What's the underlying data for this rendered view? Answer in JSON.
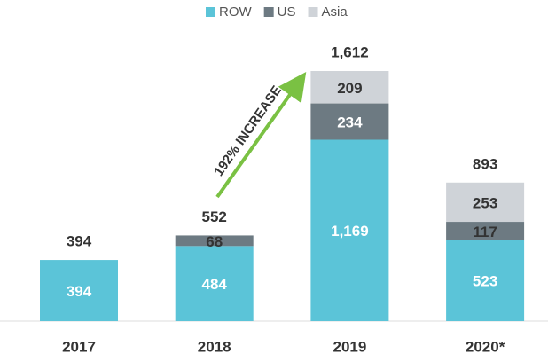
{
  "chart_data": {
    "type": "stacked-bar",
    "categories": [
      "2017",
      "2018",
      "2019",
      "2020*"
    ],
    "series": [
      {
        "name": "ROW",
        "color": "#5bc4d8",
        "values": [
          394,
          484,
          1169,
          523
        ],
        "value_labels": [
          "394",
          "484",
          "1,169",
          "523"
        ]
      },
      {
        "name": "US",
        "color": "#6d7a82",
        "values": [
          null,
          68,
          234,
          117
        ]
      },
      {
        "name": "Asia",
        "color": "#cfd3d8",
        "values": [
          null,
          null,
          209,
          253
        ]
      }
    ],
    "totals": [
      394,
      552,
      1612,
      893
    ],
    "total_labels": [
      "394",
      "552",
      "1,612",
      "893"
    ],
    "annotation": "192% INCREASE",
    "legend": "top"
  }
}
